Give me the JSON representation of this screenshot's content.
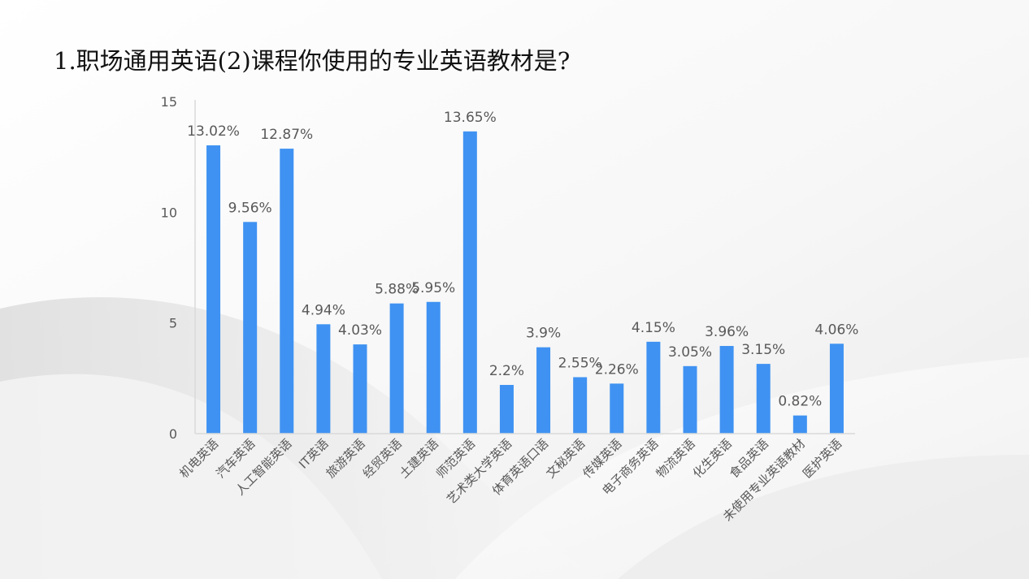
{
  "slide": {
    "title": "1.职场通用英语(2)课程你使用的专业英语教材是?"
  },
  "chart_data": {
    "type": "bar",
    "categories": [
      "机电英语",
      "汽车英语",
      "人工智能英语",
      "IT英语",
      "旅游英语",
      "经贸英语",
      "土建英语",
      "师范英语",
      "艺术类大学英语",
      "体育英语口语",
      "文秘英语",
      "传媒英语",
      "电子商务英语",
      "物流英语",
      "化生英语",
      "食品英语",
      "未使用专业英语教材",
      "医护英语"
    ],
    "values": [
      13.02,
      9.56,
      12.87,
      4.94,
      4.03,
      5.88,
      5.95,
      13.65,
      2.2,
      3.9,
      2.55,
      2.26,
      4.15,
      3.05,
      3.96,
      3.15,
      0.82,
      4.06
    ],
    "data_labels": [
      "13.02%",
      "9.56%",
      "12.87%",
      "4.94%",
      "4.03%",
      "5.88%",
      "5.95%",
      "13.65%",
      "2.2%",
      "3.9%",
      "2.55%",
      "2.26%",
      "4.15%",
      "3.05%",
      "3.96%",
      "3.15%",
      "0.82%",
      "4.06%"
    ],
    "y_ticks": [
      "0",
      "5",
      "10",
      "15"
    ],
    "ylim": [
      0,
      15
    ],
    "grid": false,
    "legend": "none",
    "bar_color": "#3F92F2",
    "axis_color": "#D9D9D9",
    "text_color": "#595959",
    "title": "",
    "xlabel": "",
    "ylabel": ""
  }
}
